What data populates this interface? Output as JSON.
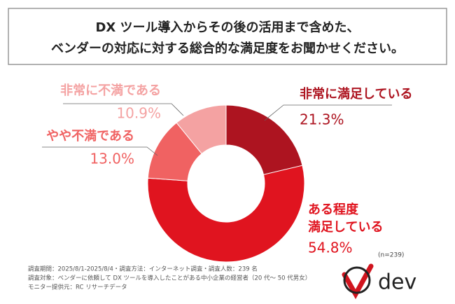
{
  "chart_data": {
    "type": "donut",
    "title": "DX ツール導入からその後の活用まで含めた、\nベンダーの対応に対する総合的な満足度をお聞かせください。",
    "categories": [
      "非常に満足している",
      "ある程度\n満足している",
      "やや不満である",
      "非常に不満である"
    ],
    "values": [
      21.3,
      54.8,
      13.0,
      10.9
    ],
    "value_labels": [
      "21.3%",
      "54.8%",
      "13.0%",
      "10.9%"
    ],
    "colors": [
      "#ad1420",
      "#e0141f",
      "#f06262",
      "#f4a2a2"
    ],
    "note": "(n=239)",
    "footnotes": [
      "調査期間：2025/8/1-2025/8/4・調査方法：インターネット調査・調査人数：239 名",
      "調査対象：ベンダーに依頼して DX ツールを導入したことがある中小企業の経営者（20 代〜 50 代男女）",
      "モニター提供元：RC リサーチデータ"
    ],
    "logo": "dev"
  }
}
